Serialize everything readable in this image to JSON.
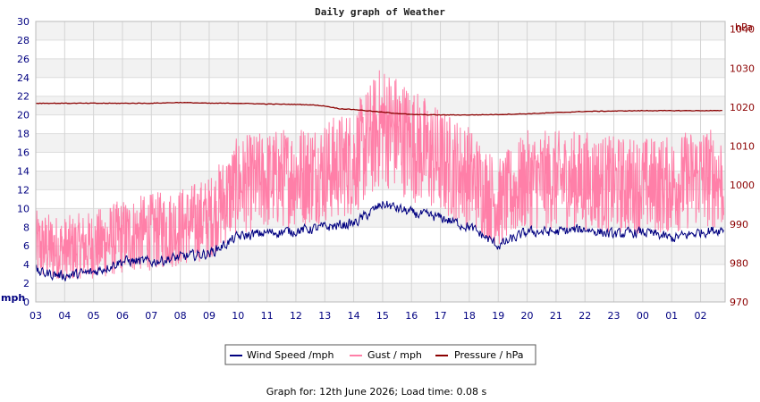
{
  "chart_data": {
    "type": "line",
    "title": "Daily graph of Weather",
    "left_axis": {
      "unit": "mph",
      "ylim": [
        0,
        30
      ],
      "ticks": [
        "0",
        "2",
        "4",
        "6",
        "8",
        "10",
        "12",
        "14",
        "16",
        "18",
        "20",
        "22",
        "24",
        "26",
        "28",
        "30"
      ]
    },
    "right_axis": {
      "unit": "hPa",
      "ylim": [
        970,
        1042
      ],
      "ticks": [
        "970",
        "980",
        "990",
        "1000",
        "1010",
        "1020",
        "1030",
        "1040"
      ]
    },
    "x_hours": [
      "03",
      "04",
      "05",
      "06",
      "07",
      "08",
      "09",
      "10",
      "11",
      "12",
      "13",
      "14",
      "15",
      "16",
      "17",
      "18",
      "19",
      "20",
      "21",
      "22",
      "23",
      "00",
      "01",
      "02"
    ],
    "grid": true,
    "legend_position": "bottom",
    "series": [
      {
        "name": "Wind Speed /mph",
        "color": "#000080",
        "axis": "left",
        "hours": [
          3,
          4,
          5,
          6,
          7,
          8,
          9,
          10,
          11,
          12,
          13,
          14,
          15,
          16,
          17,
          18,
          19,
          20,
          21,
          22,
          23,
          24,
          25,
          26,
          26.8
        ],
        "values": [
          3.2,
          2.8,
          3.2,
          4.4,
          4.3,
          4.8,
          5.2,
          7.0,
          7.4,
          7.6,
          8.0,
          8.4,
          10.5,
          9.5,
          9.0,
          8.0,
          6.0,
          7.5,
          7.5,
          7.8,
          7.2,
          7.5,
          6.8,
          7.5,
          7.8
        ]
      },
      {
        "name": "Gust / mph",
        "color": "#ff7fa8",
        "axis": "left",
        "hours": [
          3,
          4,
          5,
          6,
          7,
          8,
          9,
          10,
          11,
          12,
          13,
          14,
          15,
          16,
          17,
          18,
          19,
          20,
          21,
          22,
          23,
          24,
          25,
          26,
          26.8
        ],
        "values": [
          6.0,
          5.5,
          6.0,
          7.0,
          7.5,
          8.0,
          9.0,
          12.5,
          13.0,
          13.5,
          14.0,
          15.0,
          19.0,
          17.0,
          15.0,
          13.5,
          10.5,
          13.0,
          13.0,
          13.0,
          12.5,
          12.5,
          12.5,
          13.5,
          13.0
        ]
      },
      {
        "name": "Pressure / hPa",
        "color": "#8b0000",
        "axis": "right",
        "hours": [
          3,
          4,
          5,
          6,
          7,
          8,
          9,
          10,
          11,
          12,
          12.5,
          13,
          13.5,
          14,
          15,
          16,
          17,
          18,
          19,
          20,
          21,
          22,
          23,
          24,
          25,
          26,
          26.8
        ],
        "values": [
          1021,
          1021,
          1021,
          1021,
          1021,
          1021.2,
          1021,
          1021,
          1020.8,
          1020.7,
          1020.6,
          1020.3,
          1019.6,
          1019.4,
          1018.7,
          1018.1,
          1018,
          1018,
          1018.1,
          1018.3,
          1018.6,
          1018.9,
          1019,
          1019.1,
          1019.1,
          1019.1,
          1019.1
        ]
      }
    ]
  },
  "footer": "Graph for: 12th June 2026; Load time: 0.08 s"
}
